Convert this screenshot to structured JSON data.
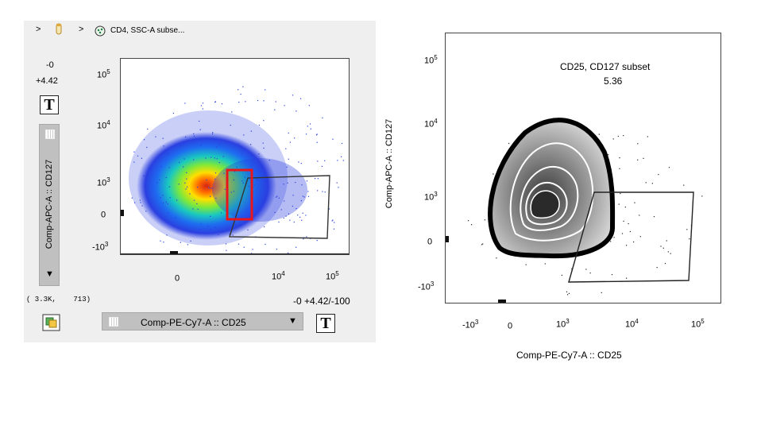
{
  "breadcrumb": {
    "sep1": ">",
    "sep2": ">",
    "label": "CD4, SSC-A subse..."
  },
  "left": {
    "y_axis_min": "-0",
    "y_axis_max": "+4.42",
    "y_param": "Comp-APC-A :: CD127",
    "y_dropdown_arrow": "▼",
    "x_param": "Comp-PE-Cy7-A :: CD25",
    "x_dropdown_arrow": "▼",
    "text_button_label": "T",
    "event_count": "( 3.3K,    713)",
    "x_range": "-0 +4.42/-100",
    "y_ticks": [
      {
        "base": "10",
        "exp": "5"
      },
      {
        "base": "10",
        "exp": "4"
      },
      {
        "base": "10",
        "exp": "3"
      },
      {
        "base": "0",
        "exp": ""
      },
      {
        "base": "-10",
        "exp": "3"
      }
    ],
    "x_ticks": [
      {
        "base": "0",
        "exp": ""
      },
      {
        "base": "10",
        "exp": "4"
      },
      {
        "base": "10",
        "exp": "5"
      }
    ],
    "colors": {
      "gate_highlight": "#e8161a",
      "panel_bg": "#efefef",
      "dropdown_bg": "#c0c0c0"
    }
  },
  "right": {
    "gate_name": "CD25, CD127 subset",
    "gate_percent": "5.36",
    "y_label": "Comp-APC-A :: CD127",
    "x_label": "Comp-PE-Cy7-A :: CD25",
    "y_ticks": [
      {
        "base": "10",
        "exp": "5"
      },
      {
        "base": "10",
        "exp": "4"
      },
      {
        "base": "10",
        "exp": "3"
      },
      {
        "base": "0",
        "exp": ""
      },
      {
        "base": "-10",
        "exp": "3"
      }
    ],
    "x_ticks": [
      {
        "base": "-10",
        "exp": "3"
      },
      {
        "base": "0",
        "exp": ""
      },
      {
        "base": "10",
        "exp": "3"
      },
      {
        "base": "10",
        "exp": "4"
      },
      {
        "base": "10",
        "exp": "5"
      }
    ]
  }
}
